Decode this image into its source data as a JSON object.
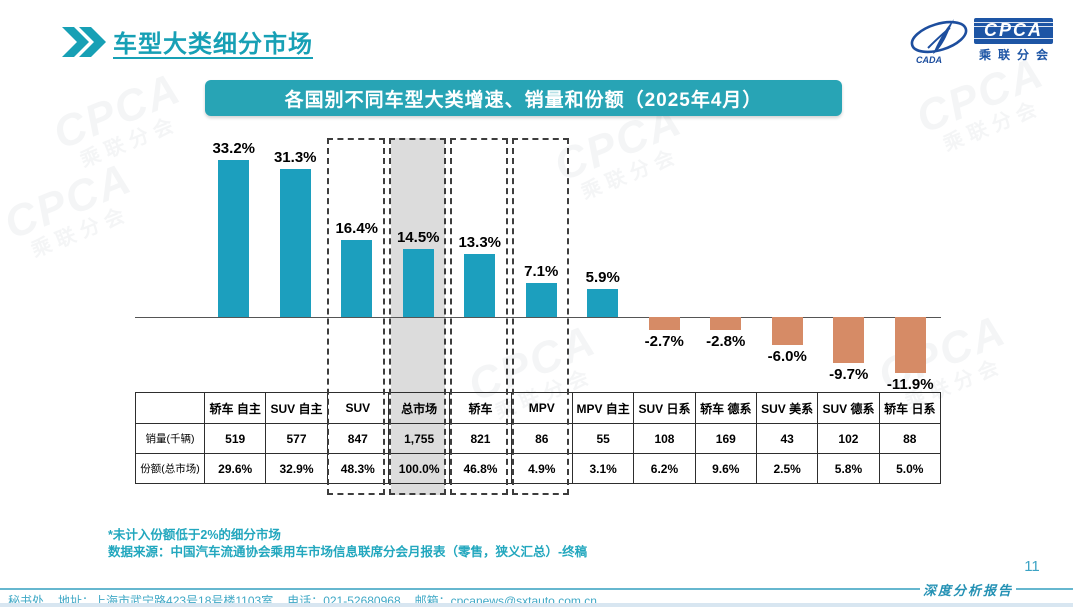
{
  "page": {
    "title": "车型大类细分市场",
    "page_number": "11",
    "report_label": "深度分析报告"
  },
  "logo": {
    "cpca": "CPCA",
    "subtitle": "乘联分会",
    "cada": "CADA"
  },
  "banner": {
    "title": "各国别不同车型大类增速、销量和份额（2025年4月）"
  },
  "chart_data": {
    "type": "bar",
    "title": "各国别不同车型大类增速、销量和份额（2025年4月）",
    "unit": "%",
    "grid": false,
    "ylim": [
      -14,
      36
    ],
    "legend": null,
    "categories": [
      "轿车 自主",
      "SUV 自主",
      "SUV",
      "总市场",
      "轿车",
      "MPV",
      "MPV 自主",
      "SUV 日系",
      "轿车 德系",
      "SUV 美系",
      "SUV 德系",
      "轿车 日系"
    ],
    "values": [
      33.2,
      31.3,
      16.4,
      14.5,
      13.3,
      7.1,
      5.9,
      -2.7,
      -2.8,
      -6.0,
      -9.7,
      -11.9
    ],
    "value_labels": [
      "33.2%",
      "31.3%",
      "16.4%",
      "14.5%",
      "13.3%",
      "7.1%",
      "5.9%",
      "-2.7%",
      "-2.8%",
      "-6.0%",
      "-9.7%",
      "-11.9%"
    ],
    "highlight": {
      "dashed_box_indices": [
        2,
        3,
        4,
        5
      ],
      "gray_fill_index": 3
    },
    "colors": {
      "positive_bar": "#1C9FBE",
      "negative_bar": "#D68B66",
      "gray_fill": "#DCDCDC"
    },
    "table": {
      "corner_label": "",
      "row_labels": [
        "销量(千辆)",
        "份额(总市场)"
      ],
      "rows": [
        [
          "519",
          "577",
          "847",
          "1,755",
          "821",
          "86",
          "55",
          "108",
          "169",
          "43",
          "102",
          "88"
        ],
        [
          "29.6%",
          "32.9%",
          "48.3%",
          "100.0%",
          "46.8%",
          "4.9%",
          "3.1%",
          "6.2%",
          "9.6%",
          "2.5%",
          "5.8%",
          "5.0%"
        ]
      ]
    }
  },
  "notes": {
    "footnote": "*未计入份额低于2%的细分市场",
    "source": "数据来源：中国汽车流通协会乘用车市场信息联席分会月报表（零售，狭义汇总）-终稿"
  },
  "footer": {
    "secretariat": "秘书处",
    "address": "地址：上海市武宁路423号18号楼1103室",
    "phone": "电话：021-52680968",
    "email": "邮箱：cpcanews@sxtauto.com.cn"
  },
  "watermark": {
    "line1": "CPCA",
    "line2": "乘联分会"
  }
}
